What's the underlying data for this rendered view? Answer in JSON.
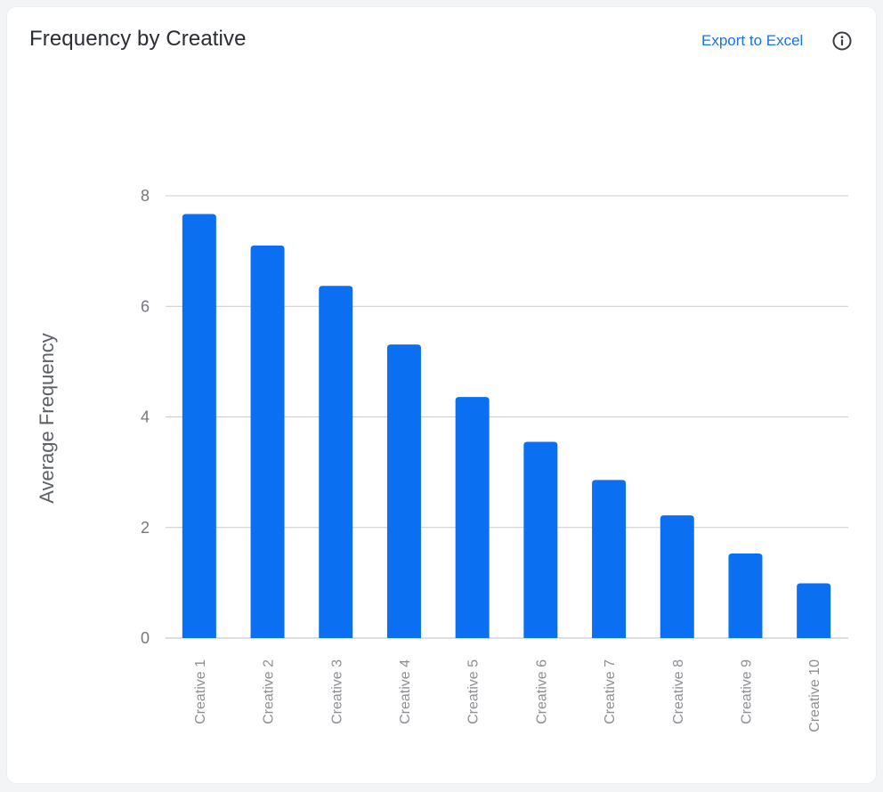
{
  "header": {
    "title": "Frequency by Creative",
    "export_label": "Export to Excel",
    "info_icon": "info-icon"
  },
  "colors": {
    "bar": "#0a6ff0",
    "link": "#1a73e8",
    "title": "#2a2d33"
  },
  "chart_data": {
    "type": "bar",
    "title": "",
    "xlabel": "",
    "ylabel": "Average Frequency",
    "ylim": [
      0,
      8
    ],
    "yticks": [
      0,
      2,
      4,
      6,
      8
    ],
    "categories": [
      "Creative 1",
      "Creative 2",
      "Creative 3",
      "Creative 4",
      "Creative 5",
      "Creative 6",
      "Creative 7",
      "Creative 8",
      "Creative 9",
      "Creative 10"
    ],
    "values": [
      7.67,
      7.1,
      6.37,
      5.31,
      4.36,
      3.55,
      2.86,
      2.22,
      1.53,
      0.99
    ],
    "grid": true
  }
}
